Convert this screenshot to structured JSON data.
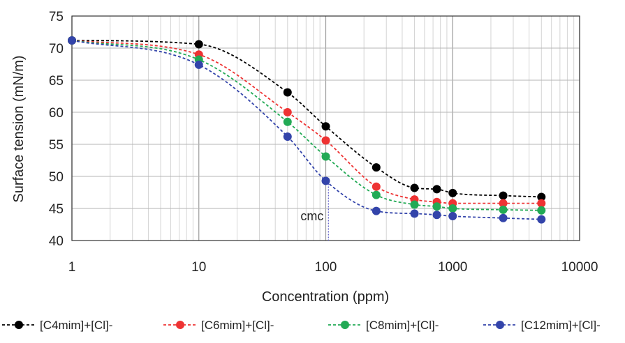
{
  "chart_data": {
    "type": "line",
    "title": "",
    "xlabel": "Concentration (ppm)",
    "ylabel": "Surface tension (mN/m)",
    "x_scale": "log",
    "xlim": [
      1,
      10000
    ],
    "ylim": [
      40,
      75
    ],
    "x_ticks": [
      1,
      10,
      100,
      1000,
      10000
    ],
    "x_tick_labels": [
      "1",
      "10",
      "100",
      "1000",
      "10000"
    ],
    "y_ticks": [
      40,
      45,
      50,
      55,
      60,
      65,
      70,
      75
    ],
    "y_tick_labels": [
      "40",
      "45",
      "50",
      "55",
      "60",
      "65",
      "70",
      "75"
    ],
    "grid": true,
    "legend_position": "bottom",
    "series": [
      {
        "name": "[C4mim]+[Cl]-",
        "color": "#000000",
        "x": [
          1,
          10,
          50,
          100,
          250,
          500,
          750,
          1000,
          2500,
          5000
        ],
        "y": [
          71.2,
          70.6,
          63.1,
          57.8,
          51.4,
          48.2,
          48.0,
          47.4,
          47.0,
          46.8
        ]
      },
      {
        "name": "[C6mim]+[Cl]-",
        "color": "#ee3333",
        "x": [
          1,
          10,
          50,
          100,
          250,
          500,
          750,
          1000,
          2500,
          5000
        ],
        "y": [
          71.2,
          69.0,
          60.0,
          55.6,
          48.4,
          46.4,
          46.0,
          45.8,
          45.8,
          45.8
        ]
      },
      {
        "name": "[C8mim]+[Cl]-",
        "color": "#22aa55",
        "x": [
          1,
          10,
          50,
          100,
          250,
          500,
          750,
          1000,
          2500,
          5000
        ],
        "y": [
          71.2,
          68.2,
          58.5,
          53.1,
          47.1,
          45.6,
          45.3,
          45.0,
          44.8,
          44.7
        ]
      },
      {
        "name": "[C12mim]+[Cl]-",
        "color": "#3344aa",
        "x": [
          1,
          10,
          50,
          100,
          250,
          500,
          750,
          1000,
          2500,
          5000
        ],
        "y": [
          71.2,
          67.4,
          56.2,
          49.3,
          44.6,
          44.2,
          44.0,
          43.8,
          43.5,
          43.3
        ]
      }
    ],
    "annotations": [
      {
        "text": "cmc",
        "x": 105,
        "y_from": 40,
        "y_to": 49.3
      }
    ]
  }
}
